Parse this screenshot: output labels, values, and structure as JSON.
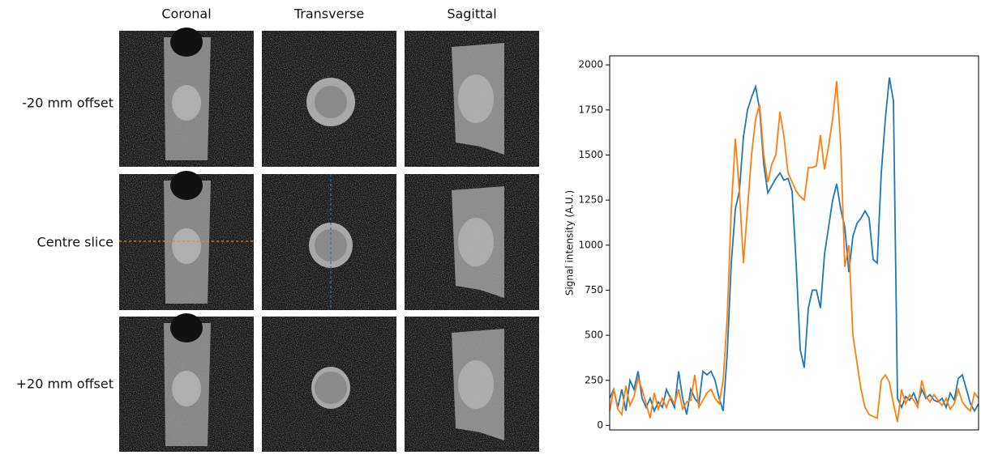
{
  "panel": {
    "columns": [
      "Coronal",
      "Transverse",
      "Sagittal"
    ],
    "rows": [
      "-20 mm offset",
      "Centre slice",
      "+20 mm offset"
    ]
  },
  "chart_data": {
    "type": "line",
    "ylabel": "Signal intensity (A.U.)",
    "ylim": [
      -25,
      2050
    ],
    "yticks": [
      0,
      250,
      500,
      750,
      1000,
      1250,
      1500,
      1750,
      2000
    ],
    "series": [
      {
        "color": "#1f77b4",
        "values": [
          150,
          200,
          100,
          200,
          80,
          250,
          200,
          300,
          150,
          100,
          150,
          80,
          130,
          100,
          200,
          150,
          100,
          300,
          150,
          60,
          200,
          150,
          120,
          300,
          280,
          300,
          250,
          150,
          80,
          400,
          900,
          1200,
          1300,
          1600,
          1750,
          1820,
          1880,
          1750,
          1450,
          1290,
          1330,
          1370,
          1400,
          1360,
          1370,
          1300,
          900,
          420,
          320,
          650,
          750,
          750,
          650,
          950,
          1100,
          1250,
          1340,
          1200,
          1100,
          850,
          1050,
          1120,
          1150,
          1190,
          1150,
          920,
          900,
          1400,
          1700,
          1930,
          1800,
          150,
          100,
          160,
          140,
          180,
          120,
          200,
          150,
          170,
          140,
          130,
          150,
          100,
          180,
          140,
          260,
          280,
          200,
          120,
          80,
          120
        ]
      },
      {
        "color": "#ff7f0e",
        "values": [
          80,
          200,
          90,
          60,
          220,
          110,
          160,
          260,
          200,
          120,
          40,
          180,
          90,
          150,
          100,
          160,
          120,
          200,
          90,
          130,
          140,
          280,
          100,
          140,
          180,
          200,
          150,
          120,
          250,
          600,
          1200,
          1590,
          1300,
          900,
          1200,
          1500,
          1700,
          1780,
          1500,
          1350,
          1450,
          1500,
          1740,
          1600,
          1400,
          1350,
          1300,
          1270,
          1250,
          1430,
          1430,
          1440,
          1610,
          1420,
          1550,
          1700,
          1910,
          1550,
          880,
          1000,
          500,
          350,
          200,
          100,
          60,
          50,
          40,
          250,
          280,
          240,
          120,
          20,
          200,
          120,
          170,
          140,
          100,
          250,
          160,
          130,
          170,
          140,
          110,
          150,
          90,
          120,
          200,
          130,
          100,
          80,
          180,
          150
        ]
      }
    ]
  }
}
